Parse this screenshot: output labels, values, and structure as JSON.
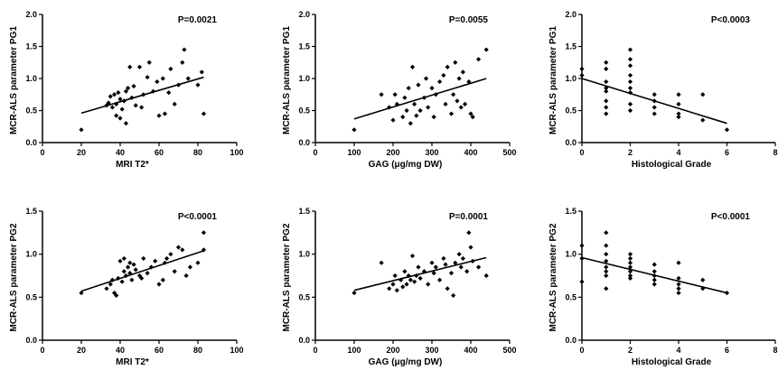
{
  "chart_data": [
    {
      "type": "scatter",
      "title": "",
      "xlabel": "MRI T2*",
      "ylabel": "MCR-ALS parameter PG1",
      "xlim": [
        0,
        100
      ],
      "ylim": [
        0.0,
        2.0
      ],
      "xticks": [
        "0",
        "20",
        "40",
        "60",
        "80",
        "100"
      ],
      "yticks": [
        "0.0",
        "0.5",
        "1.0",
        "1.5",
        "2.0"
      ],
      "annotation": "P=0.0021",
      "grid": false,
      "points": [
        [
          20,
          0.2
        ],
        [
          33,
          0.58
        ],
        [
          34,
          0.62
        ],
        [
          35,
          0.72
        ],
        [
          36,
          0.55
        ],
        [
          37,
          0.75
        ],
        [
          38,
          0.42
        ],
        [
          38,
          0.6
        ],
        [
          39,
          0.78
        ],
        [
          40,
          0.38
        ],
        [
          40,
          0.68
        ],
        [
          41,
          0.52
        ],
        [
          42,
          0.65
        ],
        [
          43,
          0.8
        ],
        [
          43,
          0.3
        ],
        [
          44,
          0.85
        ],
        [
          45,
          1.18
        ],
        [
          46,
          0.7
        ],
        [
          47,
          0.88
        ],
        [
          48,
          0.58
        ],
        [
          50,
          1.18
        ],
        [
          51,
          0.55
        ],
        [
          52,
          0.75
        ],
        [
          54,
          1.02
        ],
        [
          55,
          1.25
        ],
        [
          57,
          0.8
        ],
        [
          59,
          0.95
        ],
        [
          60,
          0.42
        ],
        [
          62,
          1.0
        ],
        [
          63,
          0.45
        ],
        [
          65,
          0.78
        ],
        [
          66,
          1.15
        ],
        [
          68,
          0.6
        ],
        [
          70,
          0.9
        ],
        [
          72,
          1.25
        ],
        [
          73,
          1.45
        ],
        [
          75,
          1.0
        ],
        [
          80,
          0.9
        ],
        [
          82,
          1.1
        ],
        [
          83,
          0.45
        ]
      ],
      "fit": [
        [
          20,
          0.46
        ],
        [
          83,
          1.02
        ]
      ]
    },
    {
      "type": "scatter",
      "title": "",
      "xlabel": "GAG (μg/mg DW)",
      "ylabel": "MCR-ALS parameter PG1",
      "xlim": [
        0,
        500
      ],
      "ylim": [
        0.0,
        2.0
      ],
      "xticks": [
        "0",
        "100",
        "200",
        "300",
        "400",
        "500"
      ],
      "yticks": [
        "0.0",
        "0.5",
        "1.0",
        "1.5",
        "2.0"
      ],
      "annotation": "P=0.0055",
      "grid": false,
      "points": [
        [
          100,
          0.2
        ],
        [
          170,
          0.75
        ],
        [
          190,
          0.55
        ],
        [
          200,
          0.35
        ],
        [
          205,
          0.75
        ],
        [
          210,
          0.6
        ],
        [
          225,
          0.4
        ],
        [
          230,
          0.7
        ],
        [
          235,
          0.5
        ],
        [
          240,
          0.85
        ],
        [
          245,
          0.3
        ],
        [
          250,
          1.18
        ],
        [
          255,
          0.6
        ],
        [
          260,
          0.42
        ],
        [
          265,
          0.9
        ],
        [
          270,
          0.5
        ],
        [
          280,
          0.7
        ],
        [
          285,
          1.0
        ],
        [
          290,
          0.55
        ],
        [
          300,
          0.85
        ],
        [
          305,
          0.4
        ],
        [
          310,
          0.75
        ],
        [
          320,
          0.95
        ],
        [
          330,
          1.05
        ],
        [
          335,
          0.6
        ],
        [
          340,
          1.18
        ],
        [
          350,
          0.45
        ],
        [
          355,
          0.75
        ],
        [
          360,
          1.25
        ],
        [
          365,
          0.65
        ],
        [
          370,
          1.0
        ],
        [
          375,
          0.55
        ],
        [
          380,
          1.1
        ],
        [
          385,
          0.6
        ],
        [
          395,
          0.95
        ],
        [
          400,
          0.45
        ],
        [
          405,
          0.4
        ],
        [
          420,
          1.3
        ],
        [
          440,
          1.45
        ]
      ],
      "fit": [
        [
          100,
          0.37
        ],
        [
          440,
          1.0
        ]
      ]
    },
    {
      "type": "scatter",
      "title": "",
      "xlabel": "Histological Grade",
      "ylabel": "MCR-ALS parameter PG1",
      "xlim": [
        0,
        8
      ],
      "ylim": [
        0.0,
        2.0
      ],
      "xticks": [
        "0",
        "2",
        "4",
        "6",
        "8"
      ],
      "yticks": [
        "0.0",
        "0.5",
        "1.0",
        "1.5",
        "2.0"
      ],
      "annotation": "P<0.0003",
      "grid": false,
      "points": [
        [
          0,
          1.15
        ],
        [
          0,
          1.05
        ],
        [
          1,
          1.25
        ],
        [
          1,
          1.15
        ],
        [
          1,
          0.95
        ],
        [
          1,
          0.85
        ],
        [
          1,
          0.8
        ],
        [
          1,
          0.65
        ],
        [
          1,
          0.55
        ],
        [
          1,
          0.45
        ],
        [
          2,
          1.45
        ],
        [
          2,
          1.3
        ],
        [
          2,
          1.2
        ],
        [
          2,
          1.05
        ],
        [
          2,
          0.95
        ],
        [
          2,
          0.85
        ],
        [
          2,
          0.78
        ],
        [
          2,
          0.6
        ],
        [
          2,
          0.5
        ],
        [
          3,
          0.75
        ],
        [
          3,
          0.65
        ],
        [
          3,
          0.55
        ],
        [
          3,
          0.45
        ],
        [
          4,
          0.75
        ],
        [
          4,
          0.6
        ],
        [
          4,
          0.45
        ],
        [
          4,
          0.4
        ],
        [
          5,
          0.75
        ],
        [
          5,
          0.35
        ],
        [
          6,
          0.2
        ]
      ],
      "fit": [
        [
          0,
          1.0
        ],
        [
          6,
          0.3
        ]
      ]
    },
    {
      "type": "scatter",
      "title": "",
      "xlabel": "MRI T2*",
      "ylabel": "MCR-ALS parameter PG2",
      "xlim": [
        0,
        100
      ],
      "ylim": [
        0.0,
        1.5
      ],
      "xticks": [
        "0",
        "20",
        "40",
        "60",
        "80",
        "100"
      ],
      "yticks": [
        "0.0",
        "0.5",
        "1.0",
        "1.5"
      ],
      "annotation": "P<0.0001",
      "grid": false,
      "points": [
        [
          20,
          0.55
        ],
        [
          33,
          0.6
        ],
        [
          35,
          0.65
        ],
        [
          36,
          0.7
        ],
        [
          37,
          0.55
        ],
        [
          38,
          0.52
        ],
        [
          39,
          0.72
        ],
        [
          40,
          0.92
        ],
        [
          41,
          0.68
        ],
        [
          42,
          0.8
        ],
        [
          42,
          0.95
        ],
        [
          43,
          0.75
        ],
        [
          44,
          0.85
        ],
        [
          45,
          0.78
        ],
        [
          45,
          0.9
        ],
        [
          46,
          0.7
        ],
        [
          47,
          0.88
        ],
        [
          48,
          0.82
        ],
        [
          50,
          0.75
        ],
        [
          51,
          0.72
        ],
        [
          52,
          0.95
        ],
        [
          54,
          0.78
        ],
        [
          56,
          0.85
        ],
        [
          58,
          0.92
        ],
        [
          60,
          0.65
        ],
        [
          62,
          0.7
        ],
        [
          63,
          0.9
        ],
        [
          64,
          0.95
        ],
        [
          66,
          1.0
        ],
        [
          68,
          0.8
        ],
        [
          70,
          1.08
        ],
        [
          72,
          1.05
        ],
        [
          74,
          0.75
        ],
        [
          76,
          0.85
        ],
        [
          80,
          0.9
        ],
        [
          83,
          1.25
        ],
        [
          83,
          1.05
        ]
      ],
      "fit": [
        [
          20,
          0.57
        ],
        [
          83,
          1.04
        ]
      ]
    },
    {
      "type": "scatter",
      "title": "",
      "xlabel": "GAG (μg/mg DW)",
      "ylabel": "MCR-ALS parameter PG2",
      "xlim": [
        0,
        500
      ],
      "ylim": [
        0.0,
        1.5
      ],
      "xticks": [
        "0",
        "100",
        "200",
        "300",
        "400",
        "500"
      ],
      "yticks": [
        "0.0",
        "0.5",
        "1.0",
        "1.5"
      ],
      "annotation": "P=0.0001",
      "grid": false,
      "points": [
        [
          100,
          0.55
        ],
        [
          170,
          0.9
        ],
        [
          190,
          0.6
        ],
        [
          200,
          0.65
        ],
        [
          205,
          0.75
        ],
        [
          210,
          0.58
        ],
        [
          220,
          0.7
        ],
        [
          225,
          0.62
        ],
        [
          230,
          0.8
        ],
        [
          235,
          0.65
        ],
        [
          240,
          0.75
        ],
        [
          245,
          0.7
        ],
        [
          250,
          0.98
        ],
        [
          255,
          0.68
        ],
        [
          260,
          0.75
        ],
        [
          265,
          0.85
        ],
        [
          270,
          0.72
        ],
        [
          280,
          0.8
        ],
        [
          290,
          0.65
        ],
        [
          300,
          0.9
        ],
        [
          305,
          0.78
        ],
        [
          310,
          0.85
        ],
        [
          320,
          0.7
        ],
        [
          330,
          0.95
        ],
        [
          335,
          0.88
        ],
        [
          340,
          0.6
        ],
        [
          350,
          0.78
        ],
        [
          355,
          0.52
        ],
        [
          360,
          0.9
        ],
        [
          370,
          1.0
        ],
        [
          375,
          0.85
        ],
        [
          380,
          0.95
        ],
        [
          390,
          0.8
        ],
        [
          395,
          1.25
        ],
        [
          400,
          1.08
        ],
        [
          405,
          0.92
        ],
        [
          420,
          0.85
        ],
        [
          440,
          0.75
        ]
      ],
      "fit": [
        [
          100,
          0.58
        ],
        [
          440,
          0.96
        ]
      ]
    },
    {
      "type": "scatter",
      "title": "",
      "xlabel": "Histological Grade",
      "ylabel": "MCR-ALS parameter PG2",
      "xlim": [
        0,
        8
      ],
      "ylim": [
        0.0,
        1.5
      ],
      "xticks": [
        "0",
        "2",
        "4",
        "6",
        "8"
      ],
      "yticks": [
        "0.0",
        "0.5",
        "1.0",
        "1.5"
      ],
      "annotation": "P<0.0001",
      "grid": false,
      "points": [
        [
          0,
          1.1
        ],
        [
          0,
          0.95
        ],
        [
          0,
          0.68
        ],
        [
          1,
          1.25
        ],
        [
          1,
          1.1
        ],
        [
          1,
          1.0
        ],
        [
          1,
          0.92
        ],
        [
          1,
          0.85
        ],
        [
          1,
          0.8
        ],
        [
          1,
          0.75
        ],
        [
          1,
          0.6
        ],
        [
          2,
          1.0
        ],
        [
          2,
          0.95
        ],
        [
          2,
          0.9
        ],
        [
          2,
          0.85
        ],
        [
          2,
          0.8
        ],
        [
          2,
          0.75
        ],
        [
          2,
          0.72
        ],
        [
          3,
          0.88
        ],
        [
          3,
          0.8
        ],
        [
          3,
          0.75
        ],
        [
          3,
          0.7
        ],
        [
          3,
          0.65
        ],
        [
          4,
          0.9
        ],
        [
          4,
          0.72
        ],
        [
          4,
          0.65
        ],
        [
          4,
          0.6
        ],
        [
          4,
          0.55
        ],
        [
          5,
          0.7
        ],
        [
          5,
          0.6
        ],
        [
          6,
          0.55
        ]
      ],
      "fit": [
        [
          0,
          0.96
        ],
        [
          6,
          0.55
        ]
      ]
    }
  ]
}
